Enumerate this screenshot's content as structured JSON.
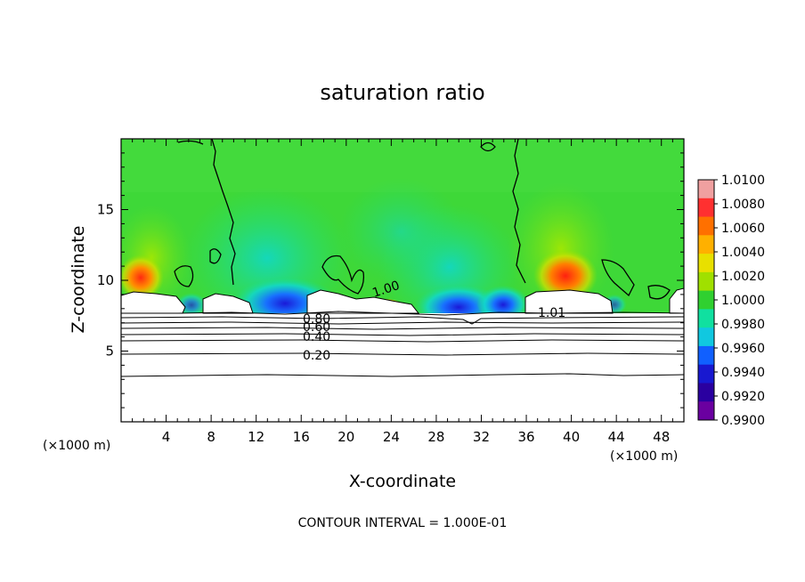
{
  "chart_data": {
    "type": "heatmap",
    "title": "saturation ratio",
    "xlabel": "X-coordinate",
    "ylabel": "Z-coordinate",
    "x_unit_left": "(×1000 m)",
    "x_unit_right": "(×1000 m)",
    "footer": "CONTOUR INTERVAL = 1.000E-01",
    "xlim": [
      0,
      50
    ],
    "ylim": [
      0,
      20
    ],
    "x_ticks": [
      4,
      8,
      12,
      16,
      20,
      24,
      28,
      32,
      36,
      40,
      44,
      48
    ],
    "x_tick_labels": [
      "4",
      "8",
      "12",
      "16",
      "20",
      "24",
      "28",
      "32",
      "36",
      "40",
      "44",
      "48"
    ],
    "y_ticks": [
      5,
      10,
      15
    ],
    "y_tick_labels": [
      "5",
      "10",
      "15"
    ],
    "colorbar": {
      "min": 0.99,
      "max": 1.01,
      "labels": [
        "1.0100",
        "1.0080",
        "1.0060",
        "1.0040",
        "1.0020",
        "1.0000",
        "0.9980",
        "0.9960",
        "0.9940",
        "0.9920",
        "0.9900"
      ],
      "colors": [
        "#f0a0a0",
        "#ff3030",
        "#ff7000",
        "#ffb000",
        "#e8e000",
        "#a0e000",
        "#30d030",
        "#10e0a0",
        "#10c8e0",
        "#1060ff",
        "#1818d0",
        "#2a00a0",
        "#6a00a0"
      ]
    },
    "contour_labels": [
      "0.80",
      "0.60",
      "0.40",
      "0.20",
      "1.00",
      "1.01"
    ],
    "contour_levels_below_cloud_base": [
      0.2,
      0.3,
      0.4,
      0.5,
      0.6,
      0.7,
      0.8,
      0.9
    ],
    "cloud_base_km": 7.7,
    "background_color": "#3ed838",
    "high_spots": [
      {
        "x": 2.0,
        "z": 10.0,
        "value": 1.008
      },
      {
        "x": 39.5,
        "z": 10.0,
        "value": 1.008
      }
    ],
    "low_spots": [
      {
        "x": 14.5,
        "z": 8.5,
        "value": 0.992
      },
      {
        "x": 30.0,
        "z": 8.5,
        "value": 0.993
      },
      {
        "x": 33.5,
        "z": 8.5,
        "value": 0.994
      }
    ]
  }
}
